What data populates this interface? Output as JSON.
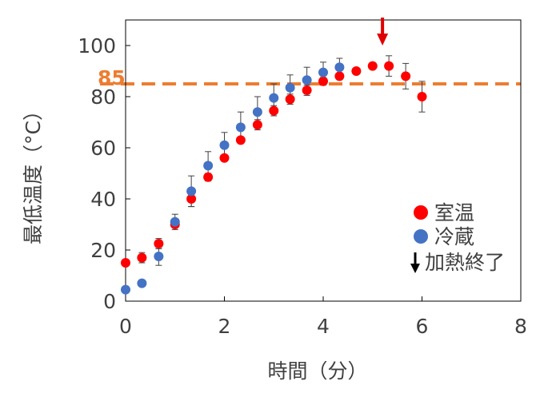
{
  "chart_data": {
    "type": "scatter",
    "xlabel": "時間（分）",
    "ylabel": "最低温度（°C）",
    "xlim": [
      0,
      8
    ],
    "ylim": [
      0,
      110
    ],
    "xticks": [
      "0",
      "2",
      "4",
      "6",
      "8"
    ],
    "yticks": [
      "0",
      "20",
      "40",
      "60",
      "80",
      "100"
    ],
    "grid": false,
    "legend_position": "bottom-right",
    "reference_line": {
      "y": 85,
      "label": "85",
      "color": "#ED7D31",
      "style": "dashed"
    },
    "heating_end_marker": {
      "x": 5.2,
      "color": "#E00000",
      "legend_label": "加熱終了"
    },
    "series": [
      {
        "name": "室温",
        "color": "#FF0000",
        "x": [
          0,
          0.33,
          0.67,
          1.0,
          1.33,
          1.67,
          2.0,
          2.33,
          2.67,
          3.0,
          3.33,
          3.67,
          4.0,
          4.33,
          4.67,
          5.0,
          5.33,
          5.67,
          6.0
        ],
        "y": [
          15,
          17,
          22.5,
          30,
          40,
          48.5,
          56,
          63,
          69,
          74.5,
          79,
          82.5,
          86,
          88,
          90,
          92,
          92,
          88,
          80
        ],
        "err": [
          0,
          2,
          2,
          1,
          3,
          1.5,
          1,
          1,
          2,
          2,
          2,
          2,
          1.5,
          1,
          0.5,
          0,
          4,
          5,
          6
        ]
      },
      {
        "name": "冷蔵",
        "color": "#4472C4",
        "x": [
          0,
          0.33,
          0.67,
          1.0,
          1.33,
          1.67,
          2.0,
          2.33,
          2.67,
          3.0,
          3.33,
          3.67,
          4.0,
          4.33
        ],
        "y": [
          4.5,
          7,
          17.5,
          31,
          43,
          53,
          61,
          68,
          74,
          79.5,
          83.5,
          86.5,
          89.5,
          91.5
        ],
        "err": [
          0,
          1,
          3.5,
          3,
          6,
          5.5,
          5,
          6,
          6,
          5.5,
          5,
          5,
          4,
          3.5
        ]
      }
    ]
  }
}
